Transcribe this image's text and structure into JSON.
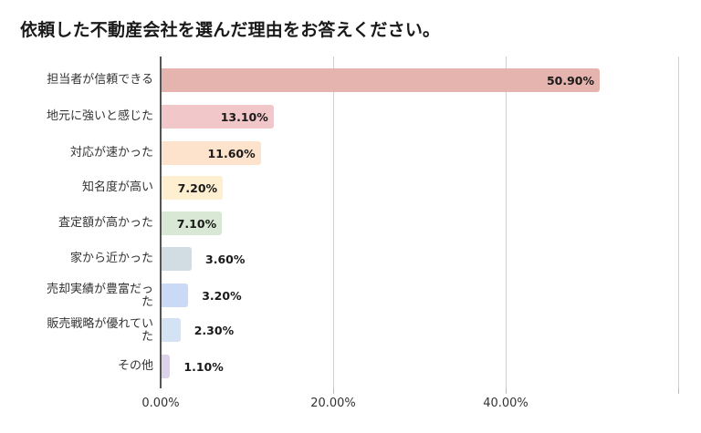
{
  "title": "依頼した不動産会社を選んだ理由をお答えください。",
  "chart_data": {
    "type": "bar",
    "orientation": "horizontal",
    "title": "依頼した不動産会社を選んだ理由をお答えください。",
    "xlabel": "",
    "ylabel": "",
    "xlim": [
      0,
      60
    ],
    "grid": true,
    "legend": "none",
    "x_ticks": [
      "0.00%",
      "20.00%",
      "40.00%"
    ],
    "categories": [
      "担当者が信頼できる",
      "地元に強いと感じた",
      "対応が速かった",
      "知名度が高い",
      "査定額が高かった",
      "家から近かった",
      "売却実績が豊富だった",
      "販売戦略が優れていた",
      "その他"
    ],
    "values": [
      50.9,
      13.1,
      11.6,
      7.2,
      7.1,
      3.6,
      3.2,
      2.3,
      1.1
    ],
    "value_labels": [
      "50.90%",
      "13.10%",
      "11.60%",
      "7.20%",
      "7.10%",
      "3.60%",
      "3.20%",
      "2.30%",
      "1.10%"
    ],
    "colors": [
      "#e6b4ae",
      "#f2c7c9",
      "#fde2cc",
      "#fdefd0",
      "#d8e8d4",
      "#d1dde3",
      "#c9d9f6",
      "#d3e3f3",
      "#dcd3ea"
    ]
  },
  "rows": [
    {
      "label_lines": [
        "担当者が信頼できる"
      ],
      "value": "50.90%"
    },
    {
      "label_lines": [
        "地元に強いと感じた"
      ],
      "value": "13.10%"
    },
    {
      "label_lines": [
        "対応が速かった"
      ],
      "value": "11.60%"
    },
    {
      "label_lines": [
        "知名度が高い"
      ],
      "value": "7.20%"
    },
    {
      "label_lines": [
        "査定額が高かった"
      ],
      "value": "7.10%"
    },
    {
      "label_lines": [
        "家から近かった"
      ],
      "value": "3.60%"
    },
    {
      "label_lines": [
        "売却実績が豊富だっ",
        "た"
      ],
      "value": "3.20%"
    },
    {
      "label_lines": [
        "販売戦略が優れてい",
        "た"
      ],
      "value": "2.30%"
    },
    {
      "label_lines": [
        "その他"
      ],
      "value": "1.10%"
    }
  ],
  "axis": {
    "ticks": [
      "0.00%",
      "20.00%",
      "40.00%"
    ]
  }
}
